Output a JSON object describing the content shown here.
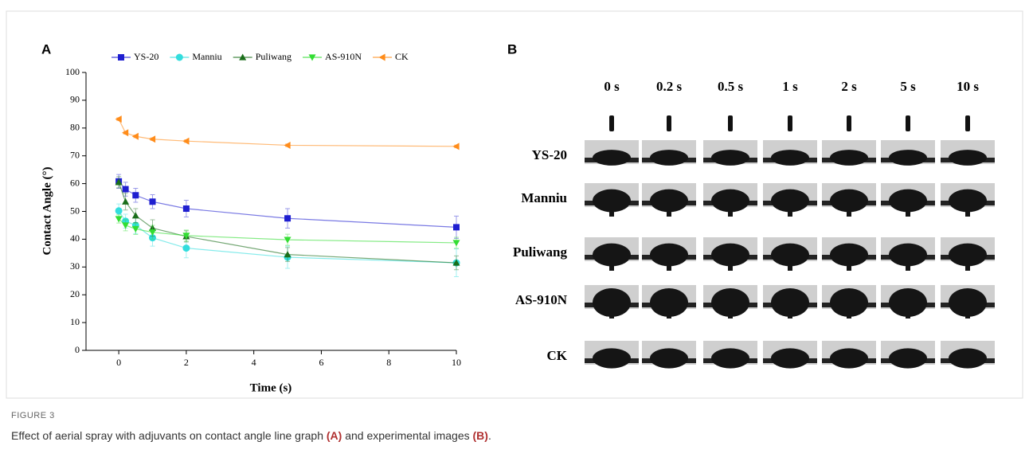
{
  "chart_data": {
    "type": "line",
    "panel_label": "A",
    "x": [
      0,
      0.2,
      0.5,
      1,
      2,
      5,
      10
    ],
    "x_label": "Time (s)",
    "y_label": "Contact Angle (°)",
    "xlim": [
      -0.97,
      10
    ],
    "xticks": [
      0,
      2,
      4,
      6,
      8,
      10
    ],
    "ylim": [
      0,
      100
    ],
    "yticks": [
      0,
      10,
      20,
      30,
      40,
      50,
      60,
      70,
      80,
      90,
      100
    ],
    "grid": false,
    "legend": "top",
    "series": [
      {
        "name": "YS-20",
        "color": "#1f1fd0",
        "marker": "square",
        "values": [
          60.8,
          58,
          55.8,
          53.5,
          51,
          47.5,
          44.3
        ],
        "errors": [
          2.5,
          2.5,
          2.5,
          2.5,
          3,
          3.5,
          4
        ]
      },
      {
        "name": "Manniu",
        "color": "#33dddd",
        "marker": "circle",
        "values": [
          50.2,
          46.5,
          45,
          40.5,
          36.8,
          33.5,
          31.5
        ],
        "errors": [
          2.5,
          2.5,
          3,
          3,
          3.5,
          4,
          5
        ]
      },
      {
        "name": "Puliwang",
        "color": "#1a6e1a",
        "marker": "triangle-up",
        "values": [
          60.5,
          53.5,
          48.5,
          44,
          41,
          34.5,
          31.5
        ],
        "errors": [
          2,
          3,
          2.5,
          3,
          2,
          2.5,
          2.5
        ]
      },
      {
        "name": "AS-910N",
        "color": "#33dd33",
        "marker": "triangle-down",
        "values": [
          47.3,
          45,
          43.7,
          42.5,
          41.3,
          39.8,
          38.7
        ],
        "errors": [
          1.5,
          2,
          2,
          2.5,
          2,
          2,
          2
        ]
      },
      {
        "name": "CK",
        "color": "#ff8c1a",
        "marker": "triangle-left",
        "values": [
          83.2,
          78.3,
          77,
          76,
          75.3,
          73.8,
          73.4
        ],
        "errors": [
          0.5,
          0.5,
          0.5,
          0.5,
          0.5,
          0.5,
          0.5
        ]
      }
    ]
  },
  "panel_b": {
    "label": "B",
    "times": [
      "0 s",
      "0.2 s",
      "0.5 s",
      "1 s",
      "2 s",
      "5 s",
      "10 s"
    ],
    "rows": [
      "YS-20",
      "Manniu",
      "Puliwang",
      "AS-910N",
      "CK"
    ]
  },
  "figure": {
    "label": "FIGURE 3",
    "caption": [
      "Effect of aerial spray with adjuvants on contact angle line graph ",
      "(A)",
      " and experimental images ",
      "(B)",
      "."
    ]
  }
}
